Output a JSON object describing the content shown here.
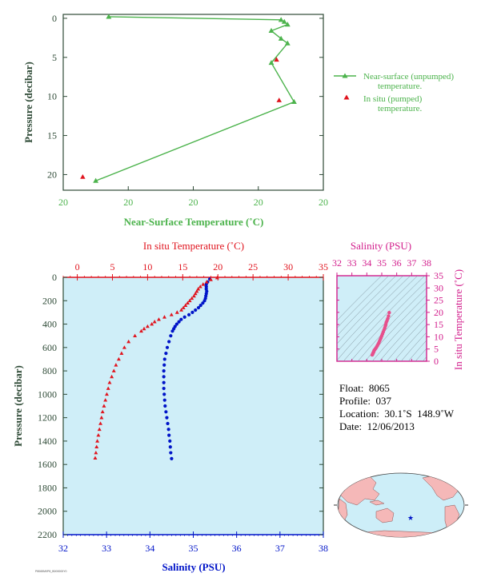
{
  "colors": {
    "green": "#4cb34c",
    "red": "#e0141e",
    "blue": "#0014c8",
    "magenta": "#d21e8c",
    "pink": "#e6508c",
    "axis_dark": "#2e4a36",
    "panel_fill": "#cfeef8",
    "land": "#f5b8b8",
    "ocean": "#cdeef8"
  },
  "chart_data": [
    {
      "id": "near-surface",
      "type": "line",
      "ylabel": "Pressure (decibar)",
      "xlabel": "Near-Surface Temperature (˚C)",
      "xticks": [
        "20",
        "20",
        "20",
        "20",
        "20"
      ],
      "yticks": [
        0,
        5,
        10,
        15,
        20
      ],
      "xlim": [
        17.5,
        21.5
      ],
      "ylim": [
        22,
        -0.5
      ],
      "series": [
        {
          "name": "Near-surface (unpumped) temperature.",
          "marker": "triangle",
          "x": [
            18.2,
            20.85,
            20.9,
            20.95,
            20.7,
            20.85,
            20.95,
            20.7,
            21.05,
            18.0
          ],
          "y": [
            -0.2,
            0.2,
            0.45,
            0.8,
            1.6,
            2.6,
            3.2,
            5.7,
            10.7,
            20.8
          ]
        },
        {
          "name": "In situ (pumped) temperature.",
          "marker": "triangle",
          "x": [
            20.78,
            20.82,
            17.8
          ],
          "y": [
            5.3,
            10.5,
            20.3
          ]
        }
      ],
      "legend": "right"
    },
    {
      "id": "profile",
      "type": "scatter",
      "ylabel": "Pressure (decibar)",
      "top_axis_label": "In situ Temperature (˚C)",
      "bottom_axis_label": "Salinity (PSU)",
      "temp_xlim": [
        -2,
        35
      ],
      "temp_xticks": [
        0,
        5,
        10,
        15,
        20,
        25,
        30,
        35
      ],
      "sal_xlim": [
        32,
        38
      ],
      "sal_xticks": [
        32,
        33,
        34,
        35,
        36,
        37,
        38
      ],
      "ylim": [
        0,
        2200
      ],
      "yticks": [
        0,
        200,
        400,
        600,
        800,
        1000,
        1200,
        1400,
        1600,
        1800,
        2000,
        2200
      ],
      "temperature": {
        "p": [
          4,
          20,
          40,
          60,
          80,
          100,
          120,
          140,
          160,
          180,
          200,
          220,
          240,
          260,
          280,
          300,
          320,
          340,
          360,
          380,
          400,
          420,
          440,
          460,
          500,
          550,
          600,
          650,
          700,
          750,
          800,
          850,
          900,
          950,
          1000,
          1050,
          1100,
          1150,
          1200,
          1250,
          1300,
          1350,
          1400,
          1450,
          1500,
          1545
        ],
        "t": [
          19.9,
          19.0,
          18.4,
          17.9,
          17.5,
          17.2,
          17.0,
          16.8,
          16.6,
          16.3,
          16.0,
          15.7,
          15.4,
          15.1,
          14.8,
          14.2,
          13.4,
          12.4,
          11.6,
          11.0,
          10.6,
          10.0,
          9.5,
          9.1,
          8.2,
          7.3,
          6.7,
          6.3,
          5.9,
          5.5,
          5.2,
          4.9,
          4.6,
          4.4,
          4.2,
          4.0,
          3.8,
          3.6,
          3.45,
          3.3,
          3.15,
          3.0,
          2.85,
          2.75,
          2.65,
          2.55
        ]
      },
      "salinity": {
        "p": [
          15,
          40,
          60,
          80,
          100,
          120,
          140,
          160,
          180,
          200,
          220,
          240,
          260,
          280,
          300,
          320,
          340,
          360,
          380,
          400,
          420,
          440,
          460,
          500,
          550,
          600,
          650,
          700,
          750,
          800,
          850,
          900,
          950,
          1000,
          1050,
          1100,
          1150,
          1200,
          1250,
          1300,
          1350,
          1400,
          1450,
          1500,
          1550
        ],
        "s": [
          35.38,
          35.33,
          35.3,
          35.3,
          35.3,
          35.31,
          35.3,
          35.29,
          35.28,
          35.26,
          35.22,
          35.17,
          35.12,
          35.05,
          34.98,
          34.9,
          34.8,
          34.72,
          34.67,
          34.62,
          34.58,
          34.55,
          34.52,
          34.48,
          34.44,
          34.4,
          34.37,
          34.34,
          34.33,
          34.32,
          34.32,
          34.32,
          34.32,
          34.33,
          34.34,
          34.35,
          34.37,
          34.39,
          34.41,
          34.43,
          34.44,
          34.46,
          34.47,
          34.48,
          34.5
        ]
      }
    },
    {
      "id": "ts-diagram",
      "type": "scatter",
      "title": "Salinity (PSU)",
      "ylabel": "In situ Temperature (˚C)",
      "xlim": [
        32,
        38
      ],
      "xticks": [
        32,
        33,
        34,
        35,
        36,
        37,
        38
      ],
      "ylim": [
        0,
        35
      ],
      "yticks": [
        0,
        5,
        10,
        15,
        20,
        25,
        30,
        35
      ],
      "points_s": [
        35.5,
        35.45,
        35.4,
        35.35,
        35.3,
        35.27,
        35.24,
        35.2,
        35.15,
        35.1,
        35.05,
        35.0,
        34.95,
        34.9,
        34.85,
        34.8,
        34.75,
        34.7,
        34.65,
        34.6,
        34.55,
        34.5,
        34.47,
        34.45,
        34.42,
        34.4,
        34.38,
        34.36
      ],
      "points_t": [
        19.9,
        18.5,
        17.4,
        16.6,
        15.9,
        15.0,
        14.4,
        13.6,
        12.8,
        12.0,
        11.2,
        10.4,
        9.6,
        8.9,
        8.2,
        7.5,
        6.9,
        6.3,
        5.8,
        5.3,
        4.9,
        4.5,
        4.1,
        3.7,
        3.4,
        3.1,
        2.8,
        2.6
      ]
    }
  ],
  "float_info": {
    "float_label": "Float:",
    "float_value": "8065",
    "profile_label": "Profile:",
    "profile_value": "037",
    "location_label": "Location:",
    "location_value": "30.1˚S  148.9˚W",
    "date_label": "Date:",
    "date_value": "12/06/2013"
  },
  "map": {
    "marker_icon": "star-icon",
    "marker_lon": -148.9,
    "marker_lat": -30.1
  },
  "footer_code": "P8065M0P8_B000000Y0"
}
